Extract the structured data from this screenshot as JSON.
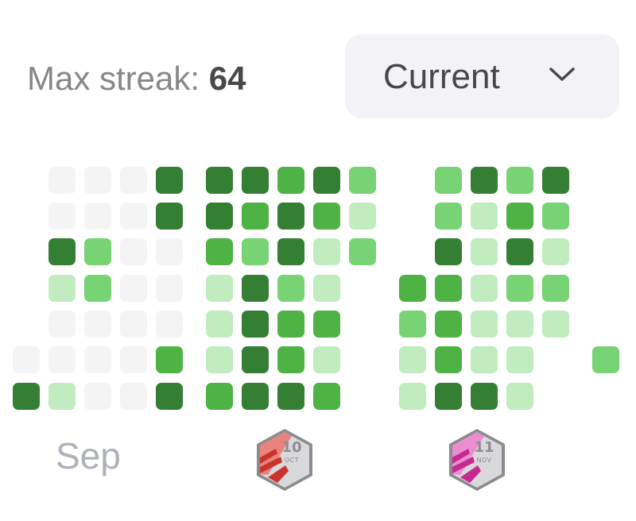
{
  "header": {
    "max_streak_label": "Max streak:",
    "max_streak_value": "64"
  },
  "period_select": {
    "selected": "Current",
    "icon": "chevron-down-icon"
  },
  "colors": {
    "empty": "#f4f4f5",
    "level1": "#c0ecbf",
    "level2": "#78d374",
    "level3": "#4fb244",
    "level4": "#357f35"
  },
  "grid": {
    "weeks": [
      [
        null,
        null,
        null,
        null,
        null,
        0,
        4
      ],
      [
        0,
        0,
        4,
        1,
        0,
        0,
        1
      ],
      [
        0,
        0,
        2,
        2,
        0,
        0,
        0
      ],
      [
        0,
        0,
        0,
        0,
        0,
        0,
        0
      ],
      [
        4,
        4,
        0,
        0,
        0,
        3,
        4
      ],
      [
        4,
        4,
        3,
        1,
        1,
        1,
        3
      ],
      [
        4,
        3,
        2,
        4,
        4,
        4,
        4
      ],
      [
        3,
        4,
        4,
        2,
        3,
        3,
        4
      ],
      [
        4,
        3,
        1,
        1,
        3,
        1,
        3
      ],
      [
        2,
        1,
        2,
        null,
        null,
        null,
        null
      ],
      [
        null,
        null,
        null,
        3,
        2,
        1,
        1
      ],
      [
        2,
        2,
        4,
        3,
        3,
        3,
        4
      ],
      [
        4,
        1,
        1,
        1,
        1,
        1,
        4
      ],
      [
        2,
        3,
        4,
        2,
        1,
        1,
        1
      ],
      [
        4,
        2,
        1,
        2,
        1,
        null,
        null
      ],
      [
        null,
        null,
        null,
        null,
        null,
        2,
        null
      ]
    ]
  },
  "footer": {
    "month_label": "Sep",
    "badges": [
      {
        "day": "10",
        "month": "OCT",
        "icon": "october-achievement-badge-icon"
      },
      {
        "day": "11",
        "month": "NOV",
        "icon": "november-achievement-badge-icon"
      }
    ]
  }
}
